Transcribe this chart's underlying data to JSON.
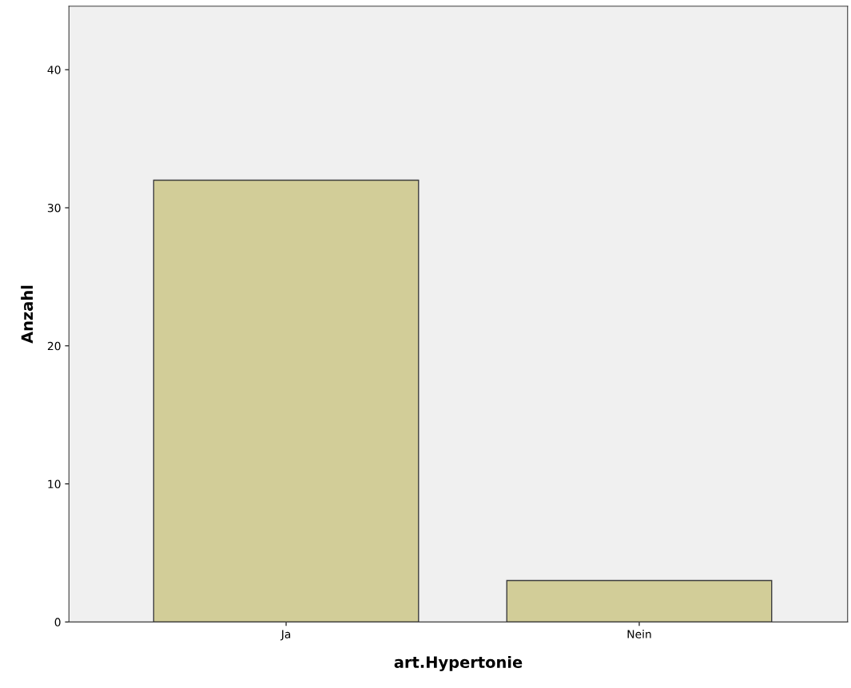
{
  "chart_data": {
    "type": "bar",
    "xlabel": "art.Hypertonie",
    "ylabel": "Anzahl",
    "categories": [
      "Ja",
      "Nein"
    ],
    "values": [
      32,
      3
    ],
    "color": "#d2cd98",
    "ylim": [
      0,
      44.6
    ],
    "yticks": [
      0,
      10,
      20,
      30,
      40
    ],
    "grid": false,
    "legend": false
  }
}
